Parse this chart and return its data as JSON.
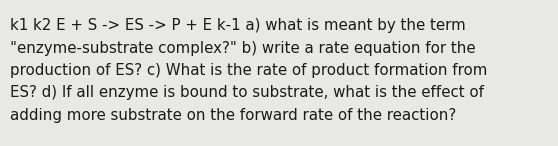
{
  "text_lines": [
    "k1 k2 E + S -> ES -> P + E k-1 a) what is meant by the term",
    "\"enzyme-substrate complex?\" b) write a rate equation for the",
    "production of ES? c) What is the rate of product formation from",
    "ES? d) If all enzyme is bound to substrate, what is the effect of",
    "adding more substrate on the forward rate of the reaction?"
  ],
  "background_color": "#e8e8e6",
  "text_color": "#1a1a1a",
  "font_size": 10.8,
  "font_family": "DejaVu Sans",
  "fig_width": 5.58,
  "fig_height": 1.46,
  "dpi": 100
}
